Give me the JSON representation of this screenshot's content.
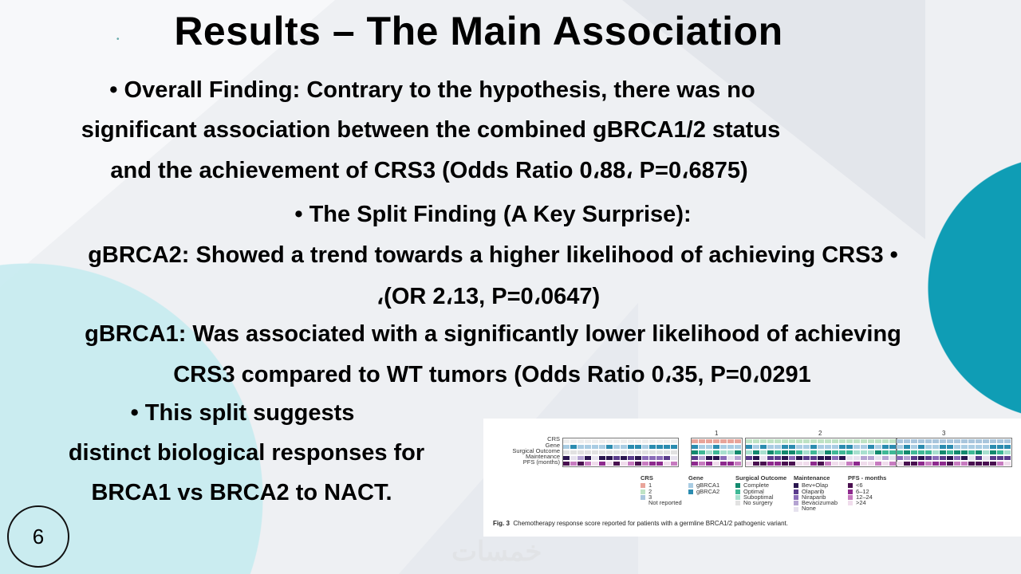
{
  "slide": {
    "title": "Results – The Main Association",
    "lines": [
      "• Overall Finding: Contrary to the hypothesis, there was no",
      "significant association between the combined gBRCA1/2 status",
      "and the achievement of CRS3 (Odds Ratio 0،88، P=0،6875)",
      "• The Split Finding (A Key Surprise):",
      "gBRCA2: Showed a trend towards a higher likelihood of achieving CRS3 •",
      "،(OR 2،13, P=0،0647)",
      "gBRCA1: Was associated with a significantly lower likelihood of achieving",
      "CRS3 compared to WT tumors (Odds Ratio 0،35, P=0،0291",
      "• This split suggests",
      "distinct biological responses for",
      "BRCA1 vs BRCA2 to NACT."
    ],
    "slide_number": "6",
    "watermark_logo": "خمسات",
    "accent_teal": "#0f9db5",
    "accent_light": "#c6ebf0"
  },
  "figure": {
    "row_labels": [
      "CRS",
      "Gene",
      "Surgical Outcome",
      "Maintenance",
      "PFS (months)"
    ],
    "group_labels": [
      "",
      "1",
      "2",
      "3"
    ],
    "legend": [
      {
        "title": "CRS",
        "items": [
          {
            "label": "1",
            "color": "#e8a49a"
          },
          {
            "label": "2",
            "color": "#bfe3c5"
          },
          {
            "label": "3",
            "color": "#a9c6dd"
          },
          {
            "label": "Not reported",
            "color": "#ffffff"
          }
        ]
      },
      {
        "title": "Gene",
        "items": [
          {
            "label": "gBRCA1",
            "color": "#a9cce3"
          },
          {
            "label": "gBRCA2",
            "color": "#2b8cb0"
          }
        ]
      },
      {
        "title": "Surgical Outcome",
        "items": [
          {
            "label": "Complete",
            "color": "#138a6e"
          },
          {
            "label": "Optimal",
            "color": "#3fb996"
          },
          {
            "label": "Suboptimal",
            "color": "#a8e0cf"
          },
          {
            "label": "No surgery",
            "color": "#e2e2e2"
          }
        ]
      },
      {
        "title": "Maintenance",
        "items": [
          {
            "label": "Bev+Olap",
            "color": "#2a1650"
          },
          {
            "label": "Olaparib",
            "color": "#5a3c8c"
          },
          {
            "label": "Niraparib",
            "color": "#8a6cb8"
          },
          {
            "label": "Bevacizumab",
            "color": "#b4a3d2"
          },
          {
            "label": "None",
            "color": "#e6e2ee"
          }
        ]
      },
      {
        "title": "PFS - months",
        "items": [
          {
            "label": "<6",
            "color": "#4a1050"
          },
          {
            "label": "6–12",
            "color": "#8e2a8e"
          },
          {
            "label": "12–24",
            "color": "#c77bc0"
          },
          {
            "label": ">24",
            "color": "#f0dcec"
          }
        ]
      }
    ],
    "caption_prefix": "Fig. 3",
    "caption": "Chemotherapy response score reported for patients with a germline BRCA1/2 pathogenic variant."
  }
}
